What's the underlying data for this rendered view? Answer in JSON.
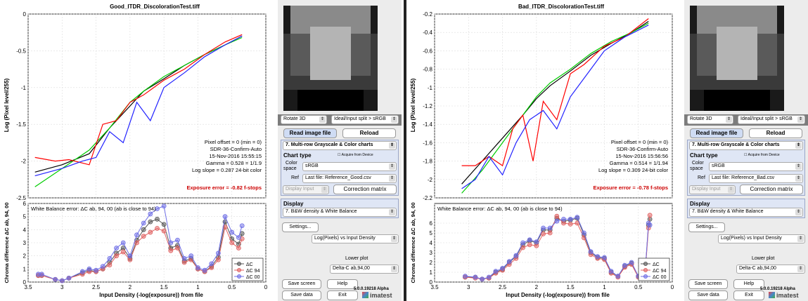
{
  "panels": [
    {
      "id": "good",
      "title": "Good_ITDR_DiscolorationTest.tiff",
      "upper_ylabel": "Log (Pixel level/255)",
      "upper_yticks": [
        "0",
        "-0.5",
        "-1",
        "-1.5",
        "-2",
        "-2.5"
      ],
      "info_lines": [
        "Pixel offset = 0  (min = 0)",
        "SDR-36-Confirm-Auto",
        "15-Nov-2016 15:55:15",
        "Gamma = 0.528 = 1/1.9",
        "Log slope = 0.287   24-bit color"
      ],
      "exposure_error": "Exposure error = -0.82 f-stops",
      "lower_title": "White Balance error: ΔC ab, 94, 00 (ab is close to 94)",
      "lower_ylabel": "Chroma difference ΔC ab, 94, 00",
      "lower_yticks": [
        "6",
        "5",
        "4",
        "3",
        "2",
        "1",
        "0"
      ],
      "xticks": [
        "3.5",
        "3",
        "2.5",
        "2",
        "1.5",
        "1",
        "0.5",
        "0"
      ],
      "xlabel": "Input Density (-log(exposure))  from file",
      "legend": [
        "ΔC",
        "ΔC 94",
        "ΔC 00"
      ],
      "controls": {
        "rotate": "Rotate 3D",
        "split": "Ideal/Input split > sRGB",
        "read_btn": "Read image file",
        "reload_btn": "Reload",
        "chart_mode": "7.  Multi-row Grayscale & Color charts",
        "chart_type_label": "Chart type",
        "acquire_label": "Acquire from Device",
        "color_label": "Color",
        "space_label": "space",
        "color_space": "sRGB",
        "ref_label": "Ref",
        "ref_file": "Last file: Reference_Good.csv",
        "display_input": "Display Input",
        "correction_btn": "Correction matrix",
        "display_label": "Display",
        "display_mode": "7.  B&W density & White Balance",
        "settings_btn": "Settings...",
        "plot_mode": "Log(Pixels) vs Input Density",
        "lower_plot_label": "Lower plot",
        "lower_plot": "Delta-C ab,94,00",
        "save_screen": "Save screen",
        "help": "Help",
        "version": "5.0.0.19218 Alpha",
        "save_data": "Save data",
        "exit": "Exit",
        "brand": "imatest"
      }
    },
    {
      "id": "bad",
      "title": "Bad_ITDR_DiscolorationTest.tiff",
      "upper_ylabel": "Log (Pixel level/255)",
      "upper_yticks": [
        "-0.2",
        "-0.4",
        "-0.6",
        "-0.8",
        "-1",
        "-1.2",
        "-1.4",
        "-1.6",
        "-1.8",
        "-2",
        "-2.2"
      ],
      "info_lines": [
        "Pixel offset = 0  (min = 0)",
        "SDR-36-Confirm-Auto",
        "15-Nov-2016 15:56:56",
        "Gamma = 0.514 = 1/1.94",
        "Log slope = 0.309   24-bit color"
      ],
      "exposure_error": "Exposure error = -0.78 f-stops",
      "lower_title": "White Balance error: ΔC ab, 94, 00 (ab is close to 94)",
      "lower_ylabel": "Chroma difference ΔC ab, 94, 00",
      "lower_yticks": [
        "6",
        "5",
        "4",
        "3",
        "2",
        "1",
        "0"
      ],
      "xticks": [
        "3.5",
        "3",
        "2.5",
        "2",
        "1.5",
        "1",
        "0.5",
        "0"
      ],
      "xlabel": "Input Density (-log(exposure))  from file",
      "legend": [
        "ΔC",
        "ΔC 94",
        "ΔC 00"
      ],
      "controls": {
        "rotate": "Rotate 3D",
        "split": "Ideal/Input split > sRGB",
        "read_btn": "Read image file",
        "reload_btn": "Reload",
        "chart_mode": "7.  Multi-row Grayscale & Color charts",
        "chart_type_label": "Chart type",
        "acquire_label": "Acquire from Device",
        "color_label": "Color",
        "space_label": "space",
        "color_space": "sRGB",
        "ref_label": "Ref",
        "ref_file": "Last file: Reference_Bad.csv",
        "display_input": "Display Input",
        "correction_btn": "Correction matrix",
        "display_label": "Display",
        "display_mode": "7.  B&W density & White Balance",
        "settings_btn": "Settings...",
        "plot_mode": "Log(Pixels) vs Input Density",
        "lower_plot_label": "Lower plot",
        "lower_plot": "Delta-C ab,94,00",
        "save_screen": "Save screen",
        "help": "Help",
        "version": "5.0.0.19218 Alpha",
        "save_data": "Save data",
        "exit": "Exit",
        "brand": "imatest"
      }
    }
  ],
  "chart_data": [
    {
      "type": "line",
      "title": "Good_ITDR_DiscolorationTest.tiff",
      "xlabel": "Input Density (-log(exposure))  from file",
      "ylabel": "Log (Pixel level/255)",
      "xlim": [
        3.5,
        0
      ],
      "ylim": [
        -2.5,
        0
      ],
      "series": [
        {
          "color": "#000000",
          "x": [
            3.4,
            3.0,
            2.6,
            2.3,
            2.0,
            1.8,
            1.5,
            1.2,
            0.9,
            0.6,
            0.35
          ],
          "y": [
            -2.15,
            -2.05,
            -1.9,
            -1.55,
            -1.25,
            -1.05,
            -0.88,
            -0.7,
            -0.55,
            -0.42,
            -0.3
          ]
        },
        {
          "color": "#00cc00",
          "x": [
            3.4,
            3.0,
            2.6,
            2.3,
            2.0,
            1.8,
            1.5,
            1.2,
            0.9,
            0.6,
            0.35
          ],
          "y": [
            -2.35,
            -2.1,
            -1.85,
            -1.55,
            -1.2,
            -1.05,
            -0.85,
            -0.7,
            -0.55,
            -0.42,
            -0.32
          ]
        },
        {
          "color": "#ff0000",
          "x": [
            3.4,
            3.1,
            2.9,
            2.6,
            2.4,
            2.2,
            2.0,
            1.8,
            1.5,
            1.2,
            0.9,
            0.6,
            0.35
          ],
          "y": [
            -1.95,
            -2.0,
            -1.98,
            -2.05,
            -1.5,
            -1.45,
            -1.2,
            -1.1,
            -0.9,
            -0.75,
            -0.55,
            -0.38,
            -0.28
          ]
        },
        {
          "color": "#2222ff",
          "x": [
            3.4,
            3.0,
            2.7,
            2.5,
            2.3,
            2.1,
            1.9,
            1.7,
            1.5,
            1.2,
            0.9,
            0.6,
            0.35
          ],
          "y": [
            -2.2,
            -2.1,
            -2.0,
            -1.95,
            -1.6,
            -1.75,
            -1.2,
            -1.45,
            -1.0,
            -0.8,
            -0.58,
            -0.42,
            -0.3
          ]
        }
      ]
    },
    {
      "type": "line",
      "title": "White Balance error: ΔC ab, 94, 00 (ab is close to 94)",
      "xlabel": "Input Density (-log(exposure))  from file",
      "ylabel": "Chroma difference ΔC ab, 94, 00",
      "xlim": [
        3.5,
        0
      ],
      "ylim": [
        0,
        6
      ],
      "series": [
        {
          "name": "ΔC",
          "color": "#555555",
          "x": [
            3.35,
            3.3,
            3.1,
            3.0,
            2.9,
            2.7,
            2.6,
            2.5,
            2.4,
            2.3,
            2.2,
            2.1,
            2.0,
            1.9,
            1.8,
            1.7,
            1.6,
            1.5,
            1.4,
            1.3,
            1.2,
            1.1,
            1.0,
            0.9,
            0.8,
            0.7,
            0.6,
            0.5,
            0.4,
            0.35
          ],
          "y": [
            0.5,
            0.5,
            0.2,
            0.1,
            0.3,
            0.7,
            0.9,
            0.8,
            1.0,
            1.5,
            2.2,
            2.6,
            1.8,
            3.2,
            4.0,
            4.6,
            4.8,
            4.4,
            2.6,
            2.8,
            1.6,
            1.8,
            1.0,
            0.8,
            1.2,
            1.9,
            4.6,
            3.3,
            2.9,
            3.7
          ]
        },
        {
          "name": "ΔC 94",
          "color": "#e06060",
          "x": [
            3.35,
            3.3,
            3.1,
            3.0,
            2.9,
            2.7,
            2.6,
            2.5,
            2.4,
            2.3,
            2.2,
            2.1,
            2.0,
            1.9,
            1.8,
            1.7,
            1.6,
            1.5,
            1.4,
            1.3,
            1.2,
            1.1,
            1.0,
            0.9,
            0.8,
            0.7,
            0.6,
            0.5,
            0.4,
            0.35
          ],
          "y": [
            0.5,
            0.5,
            0.2,
            0.1,
            0.3,
            0.6,
            0.8,
            0.8,
            1.0,
            1.3,
            2.0,
            2.3,
            1.7,
            3.0,
            3.5,
            3.8,
            4.1,
            3.9,
            2.4,
            2.6,
            1.5,
            1.7,
            1.0,
            0.8,
            1.1,
            1.7,
            4.2,
            3.0,
            2.6,
            3.3
          ]
        },
        {
          "name": "ΔC 00",
          "color": "#6e6ee6",
          "x": [
            3.35,
            3.3,
            3.1,
            3.0,
            2.9,
            2.7,
            2.6,
            2.5,
            2.4,
            2.3,
            2.2,
            2.1,
            2.0,
            1.9,
            1.8,
            1.7,
            1.6,
            1.5,
            1.4,
            1.3,
            1.2,
            1.1,
            1.0,
            0.9,
            0.8,
            0.7,
            0.6,
            0.5,
            0.4,
            0.35
          ],
          "y": [
            0.6,
            0.6,
            0.2,
            0.1,
            0.3,
            0.8,
            1.0,
            0.9,
            1.2,
            1.8,
            2.6,
            3.0,
            2.0,
            3.6,
            4.5,
            5.2,
            5.6,
            5.8,
            3.0,
            3.2,
            1.8,
            2.0,
            1.1,
            0.9,
            1.4,
            2.2,
            5.0,
            3.8,
            3.4,
            4.3
          ]
        }
      ]
    },
    {
      "type": "line",
      "title": "Bad_ITDR_DiscolorationTest.tiff",
      "xlabel": "Input Density (-log(exposure))  from file",
      "ylabel": "Log (Pixel level/255)",
      "xlim": [
        3.5,
        0
      ],
      "ylim": [
        -2.2,
        -0.2
      ],
      "series": [
        {
          "color": "#000000",
          "x": [
            3.1,
            2.8,
            2.5,
            2.2,
            2.0,
            1.8,
            1.5,
            1.2,
            0.9,
            0.6,
            0.35
          ],
          "y": [
            -2.05,
            -1.8,
            -1.55,
            -1.3,
            -1.12,
            -0.98,
            -0.82,
            -0.65,
            -0.52,
            -0.4,
            -0.28
          ]
        },
        {
          "color": "#00cc00",
          "x": [
            3.1,
            2.8,
            2.5,
            2.2,
            2.0,
            1.8,
            1.5,
            1.2,
            0.9,
            0.6,
            0.35
          ],
          "y": [
            -2.15,
            -1.9,
            -1.6,
            -1.3,
            -1.1,
            -0.95,
            -0.8,
            -0.63,
            -0.5,
            -0.4,
            -0.3
          ]
        },
        {
          "color": "#ff0000",
          "x": [
            3.1,
            2.9,
            2.7,
            2.5,
            2.35,
            2.2,
            2.05,
            1.9,
            1.7,
            1.5,
            1.3,
            1.0,
            0.7,
            0.35
          ],
          "y": [
            -1.85,
            -1.85,
            -1.75,
            -1.85,
            -1.45,
            -1.3,
            -1.8,
            -1.15,
            -1.35,
            -0.85,
            -0.75,
            -0.55,
            -0.45,
            -0.25
          ]
        },
        {
          "color": "#2222ff",
          "x": [
            3.1,
            2.9,
            2.7,
            2.5,
            2.3,
            2.1,
            1.9,
            1.7,
            1.5,
            1.2,
            1.0,
            0.7,
            0.35
          ],
          "y": [
            -2.1,
            -2.0,
            -1.75,
            -1.95,
            -1.6,
            -1.35,
            -1.25,
            -1.45,
            -1.1,
            -0.8,
            -0.6,
            -0.45,
            -0.32
          ]
        }
      ]
    },
    {
      "type": "line",
      "title": "White Balance error: ΔC ab, 94, 00 (ab is close to 94)",
      "xlabel": "Input Density (-log(exposure))  from file",
      "ylabel": "Chroma difference ΔC ab, 94, 00",
      "xlim": [
        3.5,
        0
      ],
      "ylim": [
        0,
        8
      ],
      "series": [
        {
          "name": "ΔC",
          "color": "#555555",
          "x": [
            3.05,
            2.9,
            2.8,
            2.7,
            2.6,
            2.5,
            2.4,
            2.3,
            2.2,
            2.1,
            2.0,
            1.9,
            1.8,
            1.7,
            1.6,
            1.5,
            1.4,
            1.3,
            1.2,
            1.1,
            1.0,
            0.9,
            0.8,
            0.7,
            0.6,
            0.5,
            0.4,
            0.35,
            0.33
          ],
          "y": [
            0.5,
            0.5,
            0.3,
            0.4,
            1.0,
            1.3,
            2.0,
            2.6,
            3.8,
            4.2,
            4.0,
            5.3,
            5.3,
            6.5,
            6.2,
            6.3,
            6.5,
            4.8,
            3.0,
            2.5,
            2.4,
            1.0,
            0.6,
            1.6,
            1.9,
            0.6,
            1.0,
            5.8,
            6.4
          ]
        },
        {
          "name": "ΔC 94",
          "color": "#e06060",
          "x": [
            3.05,
            2.9,
            2.8,
            2.7,
            2.6,
            2.5,
            2.4,
            2.3,
            2.2,
            2.1,
            2.0,
            1.9,
            1.8,
            1.7,
            1.6,
            1.5,
            1.4,
            1.3,
            1.2,
            1.1,
            1.0,
            0.9,
            0.8,
            0.7,
            0.6,
            0.5,
            0.4,
            0.35,
            0.33
          ],
          "y": [
            0.5,
            0.4,
            0.3,
            0.4,
            0.9,
            1.2,
            1.8,
            2.4,
            3.5,
            3.8,
            3.7,
            4.9,
            5.0,
            6.7,
            6.0,
            5.9,
            6.0,
            4.5,
            2.8,
            2.4,
            2.3,
            0.9,
            0.5,
            1.5,
            1.8,
            0.5,
            0.9,
            5.5,
            6.8
          ]
        },
        {
          "name": "ΔC 00",
          "color": "#6e6ee6",
          "x": [
            3.05,
            2.9,
            2.8,
            2.7,
            2.6,
            2.5,
            2.4,
            2.3,
            2.2,
            2.1,
            2.0,
            1.9,
            1.8,
            1.7,
            1.6,
            1.5,
            1.4,
            1.3,
            1.2,
            1.1,
            1.0,
            0.9,
            0.8,
            0.7,
            0.6,
            0.5,
            0.4,
            0.35,
            0.33
          ],
          "y": [
            0.6,
            0.5,
            0.3,
            0.5,
            1.1,
            1.4,
            2.1,
            2.7,
            4.0,
            4.3,
            4.1,
            5.5,
            5.5,
            6.2,
            6.4,
            6.4,
            6.6,
            5.0,
            3.1,
            2.6,
            2.5,
            1.1,
            0.6,
            1.7,
            2.0,
            0.6,
            1.1,
            6.0,
            5.8
          ]
        }
      ]
    }
  ]
}
